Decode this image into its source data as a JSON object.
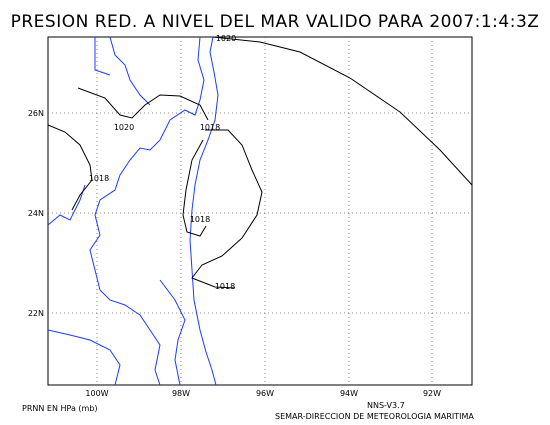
{
  "header": {
    "title": "PRESION RED. A NIVEL DEL MAR VALIDO PARA 2007:1:4:3Z"
  },
  "map": {
    "lat_labels": [
      "26N",
      "24N",
      "22N"
    ],
    "lon_labels": [
      "100W",
      "98W",
      "96W",
      "94W",
      "92W"
    ],
    "contour_labels": [
      "1020",
      "1020",
      "1018",
      "1018",
      "1018",
      "1018"
    ]
  },
  "footer": {
    "left": "PRNN EN HPa (mb)",
    "version": "NNS-V3.7",
    "credit": "SEMAR-DIRECCION DE METEOROLOGIA MARITIMA"
  }
}
